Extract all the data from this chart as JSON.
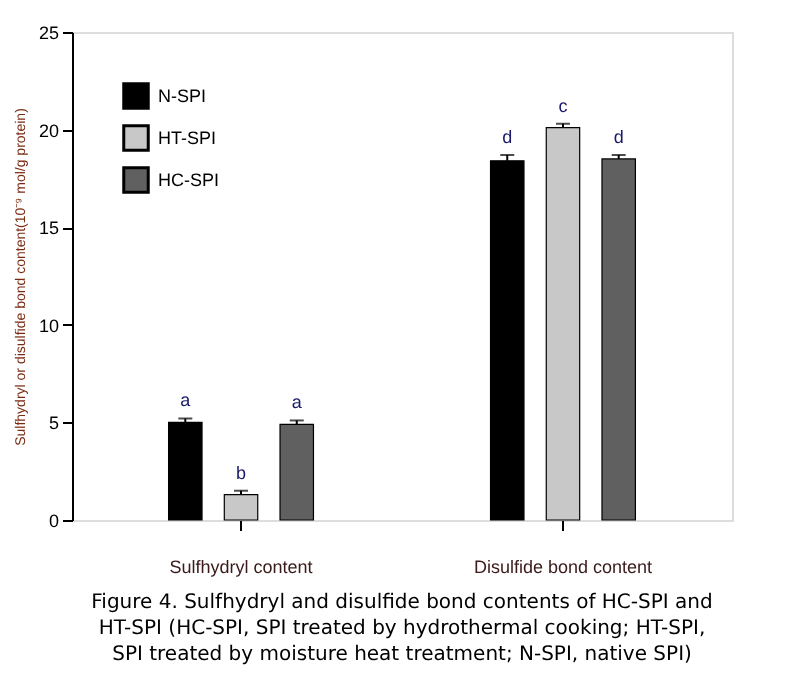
{
  "chart_data": {
    "type": "bar",
    "categories": [
      "Sulfhydryl content",
      "Disulfide bond content"
    ],
    "ylabel": "Sulfhydryl or disulfide bond content(10⁻⁹ mol/g protein)",
    "series": [
      {
        "name": "N-SPI",
        "color": "#000000",
        "values": [
          5.0,
          18.4
        ],
        "errors": [
          0.2,
          0.3
        ],
        "value_labels": [
          "a",
          "d"
        ]
      },
      {
        "name": "HT-SPI",
        "color": "#c8c8c8",
        "values": [
          1.3,
          20.1
        ],
        "errors": [
          0.2,
          0.2
        ],
        "value_labels": [
          "b",
          "c"
        ]
      },
      {
        "name": "HC-SPI",
        "color": "#606060",
        "values": [
          4.9,
          18.5
        ],
        "errors": [
          0.2,
          0.2
        ],
        "value_labels": [
          "a",
          "d"
        ]
      }
    ],
    "ylim": [
      0,
      25
    ],
    "yticks": [
      0,
      5,
      10,
      15,
      20,
      25
    ],
    "grid": false,
    "legend": "top left",
    "annotations": [
      "Figure 4. Sulfhydryl and disulfide bond contents of HC-SPI and HT-SPI (HC-SPI, SPI treated by hydrothermal cooking; HT-SPI, SPI treated by moisture heat treatment; N-SPI, native SPI)"
    ]
  }
}
